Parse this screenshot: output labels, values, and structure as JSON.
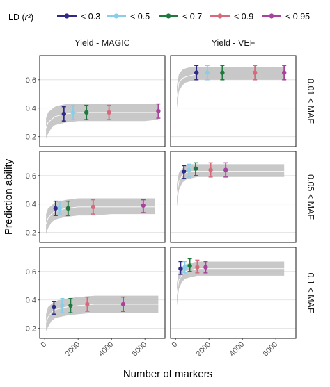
{
  "chart_data": {
    "type": "line",
    "legend": {
      "title_prefix": "LD (",
      "title_var": "r²",
      "title_suffix": ")",
      "position": "top",
      "entries": [
        {
          "label": "< 0.3",
          "color": "#2E2A86"
        },
        {
          "label": "< 0.5",
          "color": "#87CEEB"
        },
        {
          "label": "< 0.7",
          "color": "#1D7A3C"
        },
        {
          "label": "< 0.9",
          "color": "#D7697A"
        },
        {
          "label": "< 0.95",
          "color": "#A8429C"
        }
      ]
    },
    "xlabel": "Number of markers",
    "ylabel": "Prediction ability",
    "column_titles": [
      "Yield - MAGIC",
      "Yield - VEF"
    ],
    "row_titles": [
      "0.01 < MAF",
      "0.05 < MAF",
      "0.1 < MAF"
    ],
    "x_ticks": [
      0,
      2000,
      4000,
      6000
    ],
    "x_tick_labels": [
      "0",
      "2000",
      "4000",
      "6000"
    ],
    "xlim": [
      -300,
      7200
    ],
    "y_ticks": [
      0.2,
      0.4,
      0.6
    ],
    "y_tick_labels": [
      "0.2",
      "0.4",
      "0.6"
    ],
    "ylim": [
      0.13,
      0.77
    ],
    "grid": true,
    "ribbon_color": "#BEBEBE",
    "line_color": "#FFFFFF",
    "panels": [
      {
        "row": 0,
        "col": 0,
        "curve": {
          "x": [
            80,
            200,
            400,
            600,
            900,
            1300,
            2000,
            3000,
            4000,
            5000,
            6000,
            6800
          ],
          "mean": [
            0.26,
            0.3,
            0.32,
            0.34,
            0.35,
            0.36,
            0.37,
            0.37,
            0.37,
            0.37,
            0.37,
            0.37
          ],
          "lower": [
            0.19,
            0.22,
            0.26,
            0.28,
            0.29,
            0.3,
            0.31,
            0.31,
            0.31,
            0.31,
            0.31,
            0.32
          ],
          "upper": [
            0.33,
            0.37,
            0.39,
            0.41,
            0.42,
            0.43,
            0.43,
            0.43,
            0.43,
            0.43,
            0.43,
            0.43
          ]
        },
        "points": [
          {
            "x": 1150,
            "y": 0.36,
            "low": 0.31,
            "high": 0.41
          },
          {
            "x": 1700,
            "y": 0.37,
            "low": 0.32,
            "high": 0.42
          },
          {
            "x": 2500,
            "y": 0.37,
            "low": 0.32,
            "high": 0.42
          },
          {
            "x": 3850,
            "y": 0.37,
            "low": 0.32,
            "high": 0.42
          },
          {
            "x": 6800,
            "y": 0.38,
            "low": 0.33,
            "high": 0.43
          }
        ]
      },
      {
        "row": 0,
        "col": 1,
        "curve": {
          "x": [
            80,
            200,
            400,
            600,
            900,
            1300,
            2000,
            3000,
            4000,
            5000,
            6000,
            6500
          ],
          "mean": [
            0.48,
            0.58,
            0.61,
            0.62,
            0.63,
            0.64,
            0.64,
            0.64,
            0.64,
            0.64,
            0.64,
            0.64
          ],
          "lower": [
            0.4,
            0.52,
            0.56,
            0.58,
            0.59,
            0.6,
            0.6,
            0.6,
            0.6,
            0.6,
            0.6,
            0.6
          ],
          "upper": [
            0.56,
            0.64,
            0.67,
            0.68,
            0.69,
            0.69,
            0.69,
            0.69,
            0.69,
            0.69,
            0.69,
            0.69
          ]
        },
        "points": [
          {
            "x": 1250,
            "y": 0.65,
            "low": 0.6,
            "high": 0.7
          },
          {
            "x": 1900,
            "y": 0.65,
            "low": 0.6,
            "high": 0.7
          },
          {
            "x": 2800,
            "y": 0.65,
            "low": 0.6,
            "high": 0.7
          },
          {
            "x": 4750,
            "y": 0.65,
            "low": 0.6,
            "high": 0.7
          },
          {
            "x": 6500,
            "y": 0.65,
            "low": 0.6,
            "high": 0.7
          }
        ]
      },
      {
        "row": 1,
        "col": 0,
        "curve": {
          "x": [
            80,
            200,
            400,
            600,
            900,
            1300,
            2000,
            3000,
            4000,
            5000,
            6000,
            6600
          ],
          "mean": [
            0.26,
            0.3,
            0.33,
            0.35,
            0.36,
            0.37,
            0.38,
            0.38,
            0.38,
            0.38,
            0.38,
            0.38
          ],
          "lower": [
            0.19,
            0.23,
            0.27,
            0.29,
            0.3,
            0.31,
            0.32,
            0.32,
            0.33,
            0.33,
            0.33,
            0.33
          ],
          "upper": [
            0.33,
            0.37,
            0.39,
            0.41,
            0.42,
            0.43,
            0.44,
            0.44,
            0.44,
            0.44,
            0.44,
            0.44
          ]
        },
        "points": [
          {
            "x": 650,
            "y": 0.37,
            "low": 0.32,
            "high": 0.42
          },
          {
            "x": 900,
            "y": 0.37,
            "low": 0.33,
            "high": 0.42
          },
          {
            "x": 1400,
            "y": 0.37,
            "low": 0.32,
            "high": 0.42
          },
          {
            "x": 2900,
            "y": 0.38,
            "low": 0.33,
            "high": 0.43
          },
          {
            "x": 5900,
            "y": 0.39,
            "low": 0.34,
            "high": 0.43
          }
        ]
      },
      {
        "row": 1,
        "col": 1,
        "curve": {
          "x": [
            80,
            200,
            400,
            600,
            900,
            1300,
            2000,
            3000,
            4000,
            5000,
            6000,
            6500
          ],
          "mean": [
            0.46,
            0.56,
            0.6,
            0.62,
            0.63,
            0.63,
            0.63,
            0.63,
            0.63,
            0.63,
            0.63,
            0.63
          ],
          "lower": [
            0.38,
            0.5,
            0.55,
            0.57,
            0.58,
            0.59,
            0.59,
            0.59,
            0.59,
            0.59,
            0.59,
            0.59
          ],
          "upper": [
            0.54,
            0.62,
            0.65,
            0.67,
            0.68,
            0.68,
            0.68,
            0.68,
            0.68,
            0.68,
            0.68,
            0.68
          ]
        },
        "points": [
          {
            "x": 500,
            "y": 0.63,
            "low": 0.58,
            "high": 0.67
          },
          {
            "x": 800,
            "y": 0.64,
            "low": 0.59,
            "high": 0.68
          },
          {
            "x": 1200,
            "y": 0.65,
            "low": 0.6,
            "high": 0.69
          },
          {
            "x": 2100,
            "y": 0.64,
            "low": 0.59,
            "high": 0.69
          },
          {
            "x": 3000,
            "y": 0.64,
            "low": 0.59,
            "high": 0.69
          }
        ]
      },
      {
        "row": 2,
        "col": 0,
        "curve": {
          "x": [
            80,
            200,
            400,
            600,
            900,
            1300,
            2000,
            3000,
            4000,
            5000,
            6000,
            6800
          ],
          "mean": [
            0.24,
            0.28,
            0.31,
            0.33,
            0.34,
            0.35,
            0.36,
            0.37,
            0.37,
            0.37,
            0.37,
            0.37
          ],
          "lower": [
            0.18,
            0.21,
            0.25,
            0.27,
            0.28,
            0.29,
            0.3,
            0.31,
            0.31,
            0.31,
            0.31,
            0.31
          ],
          "upper": [
            0.3,
            0.35,
            0.37,
            0.39,
            0.4,
            0.41,
            0.42,
            0.43,
            0.43,
            0.43,
            0.43,
            0.43
          ]
        },
        "points": [
          {
            "x": 550,
            "y": 0.35,
            "low": 0.3,
            "high": 0.39
          },
          {
            "x": 1050,
            "y": 0.36,
            "low": 0.31,
            "high": 0.41
          },
          {
            "x": 1550,
            "y": 0.36,
            "low": 0.31,
            "high": 0.41
          },
          {
            "x": 2550,
            "y": 0.37,
            "low": 0.32,
            "high": 0.42
          },
          {
            "x": 4700,
            "y": 0.37,
            "low": 0.32,
            "high": 0.42
          }
        ]
      },
      {
        "row": 2,
        "col": 1,
        "curve": {
          "x": [
            80,
            200,
            400,
            600,
            900,
            1300,
            2000,
            3000,
            4000,
            5000,
            6000,
            6500
          ],
          "mean": [
            0.44,
            0.54,
            0.58,
            0.6,
            0.61,
            0.62,
            0.62,
            0.62,
            0.62,
            0.62,
            0.62,
            0.62
          ],
          "lower": [
            0.36,
            0.48,
            0.53,
            0.55,
            0.56,
            0.57,
            0.57,
            0.57,
            0.57,
            0.57,
            0.57,
            0.57
          ],
          "upper": [
            0.52,
            0.6,
            0.63,
            0.65,
            0.66,
            0.67,
            0.67,
            0.67,
            0.67,
            0.67,
            0.67,
            0.67
          ]
        },
        "points": [
          {
            "x": 300,
            "y": 0.62,
            "low": 0.58,
            "high": 0.67
          },
          {
            "x": 550,
            "y": 0.63,
            "low": 0.59,
            "high": 0.67
          },
          {
            "x": 850,
            "y": 0.64,
            "low": 0.6,
            "high": 0.69
          },
          {
            "x": 1300,
            "y": 0.63,
            "low": 0.59,
            "high": 0.68
          },
          {
            "x": 1800,
            "y": 0.63,
            "low": 0.59,
            "high": 0.67
          }
        ]
      }
    ]
  }
}
